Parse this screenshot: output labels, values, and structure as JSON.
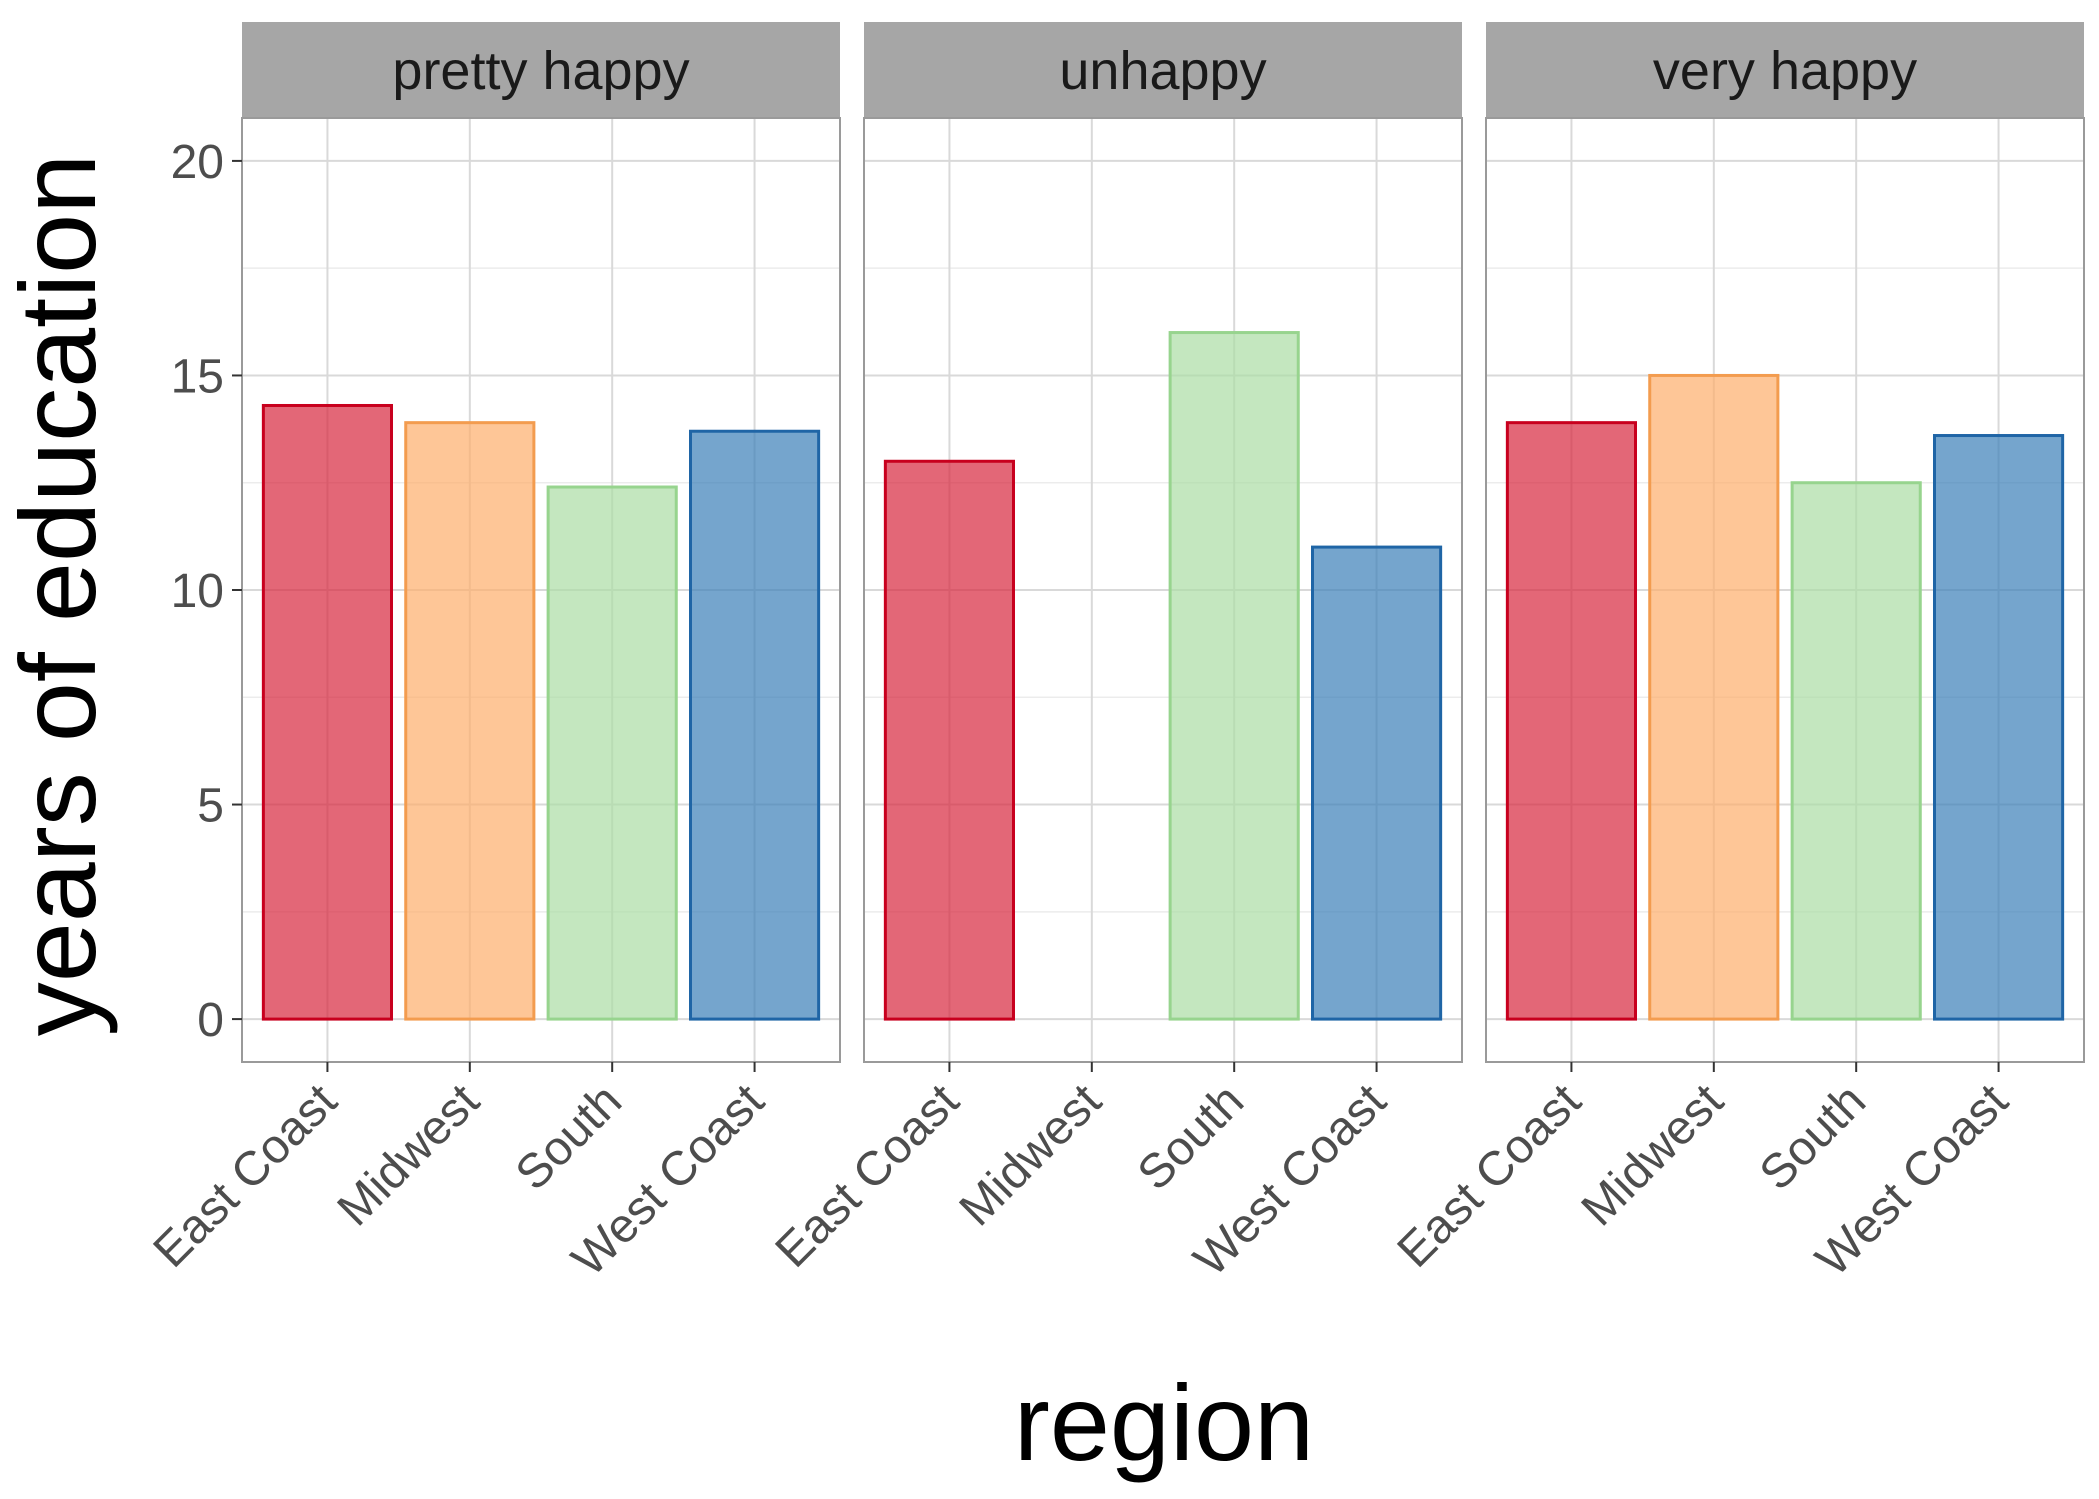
{
  "chart_data": {
    "type": "bar",
    "xlabel": "region",
    "ylabel": "years of education",
    "ylim": [
      -1,
      21
    ],
    "yticks": [
      0,
      5,
      10,
      15,
      20
    ],
    "grid": true,
    "categories": [
      "East Coast",
      "Midwest",
      "South",
      "West Coast"
    ],
    "colors": {
      "East Coast": {
        "fill": "#d7263d",
        "stroke": "#c8001e"
      },
      "Midwest": {
        "fill": "#fdae6b",
        "stroke": "#f39c4f"
      },
      "South": {
        "fill": "#abdda4",
        "stroke": "#97d48e"
      },
      "West Coast": {
        "fill": "#3a7fb8",
        "stroke": "#1f65a6"
      }
    },
    "panels": [
      {
        "title": "pretty happy",
        "values": [
          14.3,
          13.9,
          12.4,
          13.7
        ]
      },
      {
        "title": "unhappy",
        "values": [
          13.0,
          null,
          16.0,
          11.0
        ]
      },
      {
        "title": "very happy",
        "values": [
          13.9,
          15.0,
          12.5,
          13.6
        ]
      }
    ]
  }
}
